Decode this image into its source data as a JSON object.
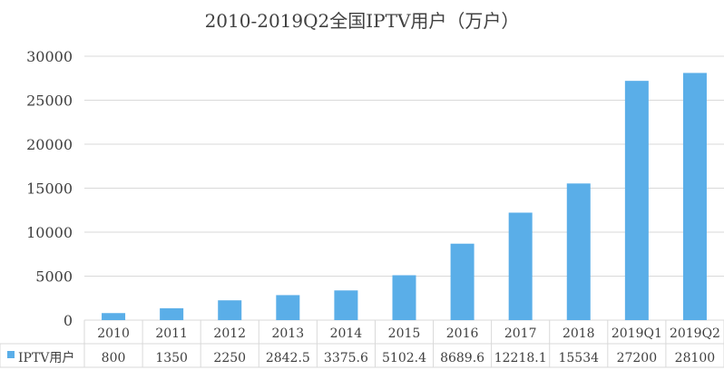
{
  "chart_data": {
    "type": "bar",
    "title": "2010-2019Q2全国IPTV用户（万户）",
    "categories": [
      "2010",
      "2011",
      "2012",
      "2013",
      "2014",
      "2015",
      "2016",
      "2017",
      "2018",
      "2019Q1",
      "2019Q2"
    ],
    "series": [
      {
        "name": "IPTV用户",
        "values": [
          800,
          1350,
          2250,
          2842.5,
          3375.6,
          5102.4,
          8689.6,
          12218.1,
          15534,
          27200,
          28100
        ],
        "value_labels": [
          "800",
          "1350",
          "2250",
          "2842.5",
          "3375.6",
          "5102.4",
          "8689.6",
          "12218.1",
          "15534",
          "27200",
          "28100"
        ]
      }
    ],
    "y_ticks": [
      "0",
      "5000",
      "10000",
      "15000",
      "20000",
      "25000",
      "30000"
    ],
    "ylim": [
      0,
      30000
    ],
    "grid": true,
    "legend": "bottom-left data table",
    "data_table": true,
    "colors": {
      "bar": "#5aaee8",
      "grid": "#d9d9d9",
      "text": "#404040"
    }
  }
}
